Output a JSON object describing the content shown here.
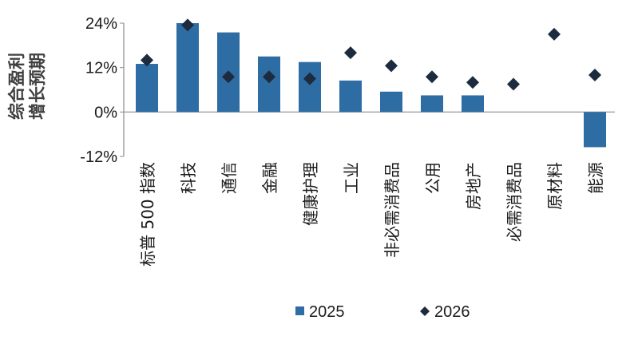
{
  "chart_data": {
    "type": "bar",
    "ylabel": [
      "综合盈利",
      "增长预期"
    ],
    "ylim": [
      -12,
      24
    ],
    "yticks": [
      24,
      12,
      0,
      -12
    ],
    "ytick_labels": [
      "24%",
      "12%",
      "0%",
      "-12%"
    ],
    "categories": [
      "标普 500 指数",
      "科技",
      "通信",
      "金融",
      "健康护理",
      "工业",
      "非必需消费品",
      "公用",
      "房地产",
      "必需消费品",
      "原材料",
      "能源"
    ],
    "series": [
      {
        "name": "2025",
        "type": "bar",
        "color": "#2e6da4",
        "values": [
          13,
          24,
          21.5,
          15,
          13.5,
          8.5,
          5.5,
          4.5,
          4.5,
          null,
          null,
          -9.5
        ]
      },
      {
        "name": "2026",
        "type": "scatter",
        "marker": "diamond",
        "color": "#1c2b3d",
        "values": [
          14,
          23.5,
          9.5,
          9.5,
          9,
          16,
          12.5,
          9.5,
          8,
          7.5,
          21,
          10
        ]
      }
    ],
    "legend_position": "bottom"
  }
}
